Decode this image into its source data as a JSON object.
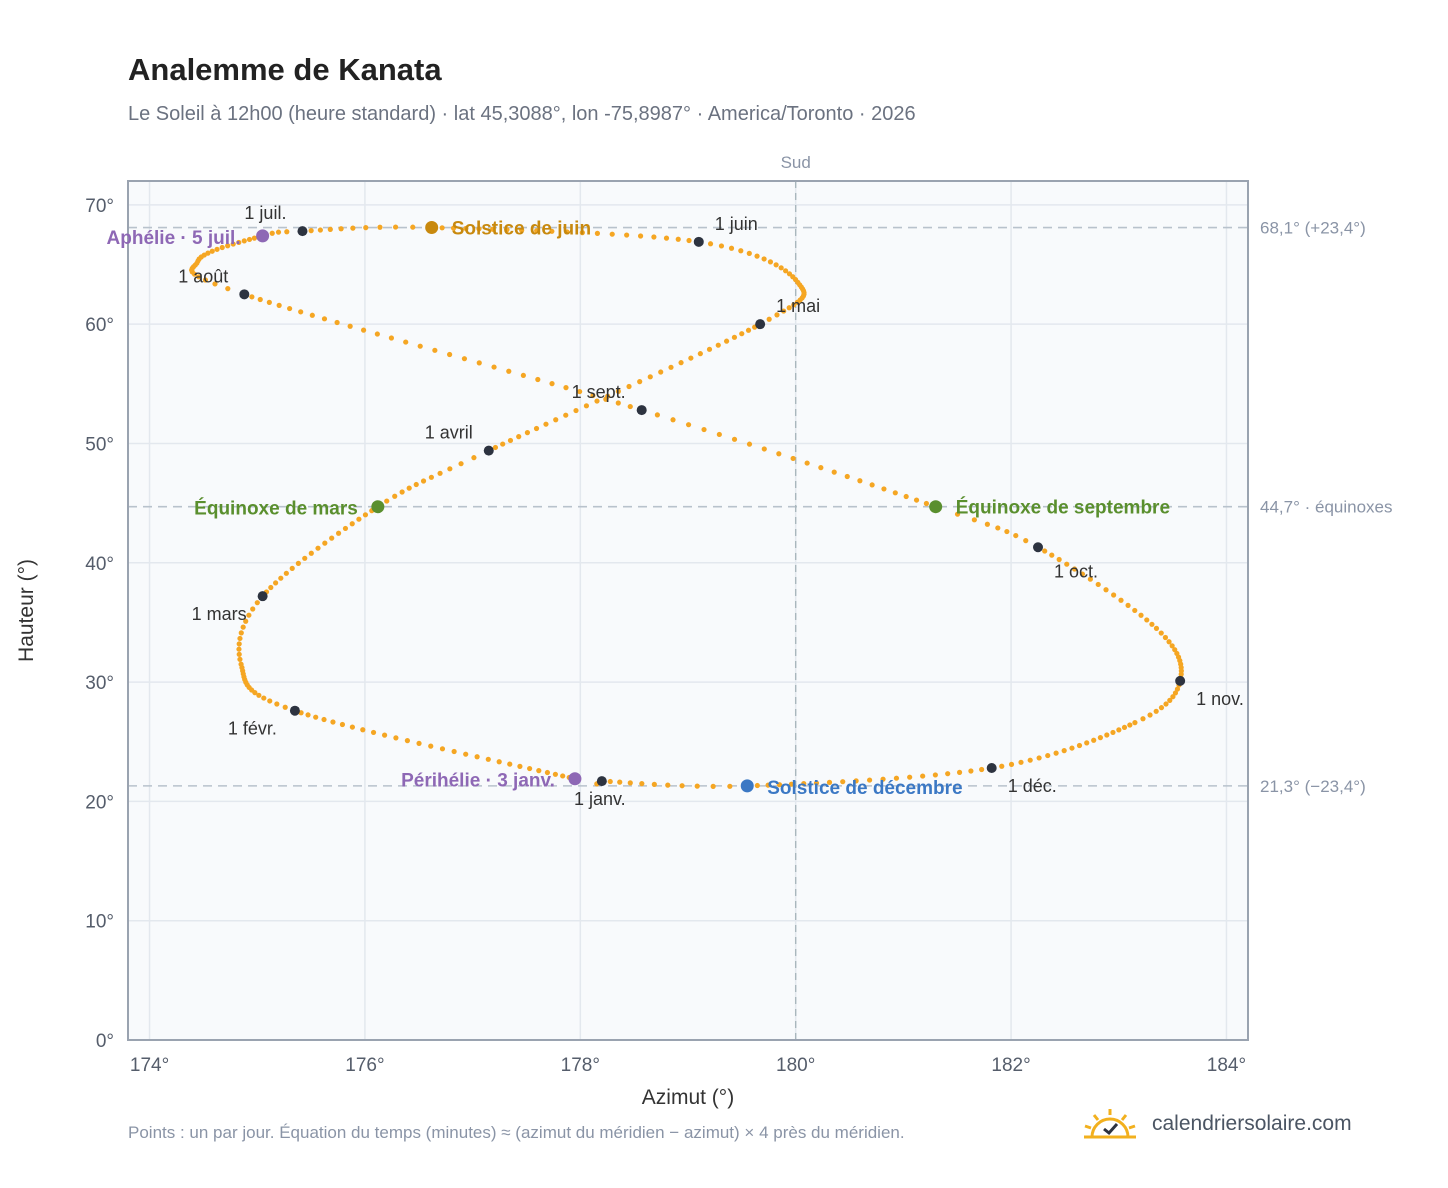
{
  "header": {
    "title": "Analemme de Kanata",
    "subtitle": "Le Soleil à 12h00 (heure standard) · lat 45,3088°, lon -75,8987° · America/Toronto · 2026"
  },
  "footer": {
    "note": "Points : un par jour. Équation du temps (minutes) ≈ (azimut du méridien − azimut) × 4 près du méridien.",
    "brand": "calendriersolaire.com"
  },
  "colors": {
    "curve": "#f5a623",
    "month_marker": "#2d3340",
    "solstice_june": "#c8890e",
    "solstice_december": "#3b78c4",
    "equinox": "#5a8f2e",
    "apsis": "#8e68b5",
    "plot_bg": "#f8fafc",
    "grid": "#e3e8ee",
    "ref_line": "#b8c2cc",
    "axis_text": "#555d6b"
  },
  "chart_data": {
    "type": "scatter",
    "xlabel": "Azimut (°)",
    "ylabel": "Hauteur (°)",
    "xlim": [
      173.8,
      184.2
    ],
    "ylim": [
      0,
      72
    ],
    "x_ticks": [
      174,
      176,
      178,
      180,
      182,
      184
    ],
    "x_tick_labels": [
      "174°",
      "176°",
      "178°",
      "180°",
      "182°",
      "184°"
    ],
    "y_ticks": [
      0,
      10,
      20,
      30,
      40,
      50,
      60,
      70
    ],
    "y_tick_labels": [
      "0°",
      "10°",
      "20°",
      "30°",
      "40°",
      "50°",
      "60°",
      "70°"
    ],
    "grid": true,
    "meridian": {
      "azimuth": 180,
      "label": "Sud"
    },
    "reference_lines": [
      {
        "altitude": 68.1,
        "label": "68,1° (+23,4°)"
      },
      {
        "altitude": 44.7,
        "label": "44,7° · équinoxes"
      },
      {
        "altitude": 21.3,
        "label": "21,3° (−23,4°)"
      }
    ],
    "series": [
      {
        "points_per": "day",
        "keypoints": [
          {
            "day": 0,
            "az": 178.2,
            "alt": 21.7
          },
          {
            "day": 2,
            "az": 177.95,
            "alt": 21.9
          },
          {
            "day": 31,
            "az": 175.35,
            "alt": 27.6
          },
          {
            "day": 47,
            "az": 174.85,
            "alt": 31.5
          },
          {
            "day": 59,
            "az": 175.05,
            "alt": 37.2
          },
          {
            "day": 78,
            "az": 176.12,
            "alt": 44.7
          },
          {
            "day": 90,
            "az": 177.15,
            "alt": 49.4
          },
          {
            "day": 120,
            "az": 179.67,
            "alt": 60.0
          },
          {
            "day": 136,
            "az": 180.02,
            "alt": 63.5
          },
          {
            "day": 151,
            "az": 179.1,
            "alt": 66.9
          },
          {
            "day": 171,
            "az": 176.62,
            "alt": 68.1
          },
          {
            "day": 181,
            "az": 175.42,
            "alt": 67.8
          },
          {
            "day": 185,
            "az": 175.05,
            "alt": 67.4
          },
          {
            "day": 200,
            "az": 174.45,
            "alt": 65.3
          },
          {
            "day": 212,
            "az": 174.88,
            "alt": 62.5
          },
          {
            "day": 243,
            "az": 178.57,
            "alt": 52.8
          },
          {
            "day": 265,
            "az": 181.3,
            "alt": 44.7
          },
          {
            "day": 273,
            "az": 182.25,
            "alt": 41.3
          },
          {
            "day": 290,
            "az": 183.35,
            "alt": 34.5
          },
          {
            "day": 304,
            "az": 183.57,
            "alt": 30.1
          },
          {
            "day": 315,
            "az": 183.15,
            "alt": 26.6
          },
          {
            "day": 334,
            "az": 181.82,
            "alt": 22.8
          },
          {
            "day": 354,
            "az": 179.55,
            "alt": 21.3
          },
          {
            "day": 365,
            "az": 178.2,
            "alt": 21.7
          }
        ]
      }
    ],
    "month_markers": [
      {
        "label": "1 janv.",
        "az": 178.2,
        "alt": 21.7
      },
      {
        "label": "1 févr.",
        "az": 175.35,
        "alt": 27.6
      },
      {
        "label": "1 mars",
        "az": 175.05,
        "alt": 37.2
      },
      {
        "label": "1 avril",
        "az": 177.15,
        "alt": 49.4
      },
      {
        "label": "1 mai",
        "az": 179.67,
        "alt": 60.0
      },
      {
        "label": "1 juin",
        "az": 179.1,
        "alt": 66.9
      },
      {
        "label": "1 juil.",
        "az": 175.42,
        "alt": 67.8
      },
      {
        "label": "1 août",
        "az": 174.88,
        "alt": 62.5
      },
      {
        "label": "1 sept.",
        "az": 178.57,
        "alt": 52.8
      },
      {
        "label": "1 oct.",
        "az": 182.25,
        "alt": 41.3
      },
      {
        "label": "1 nov.",
        "az": 183.57,
        "alt": 30.1
      },
      {
        "label": "1 déc.",
        "az": 181.82,
        "alt": 22.8
      }
    ],
    "events": [
      {
        "label": "Solstice de juin",
        "az": 176.62,
        "alt": 68.1,
        "color_key": "solstice_june"
      },
      {
        "label": "Aphélie · 5 juil.",
        "az": 175.05,
        "alt": 67.4,
        "color_key": "apsis"
      },
      {
        "label": "Équinoxe de mars",
        "az": 176.12,
        "alt": 44.7,
        "color_key": "equinox"
      },
      {
        "label": "Équinoxe de septembre",
        "az": 181.3,
        "alt": 44.7,
        "color_key": "equinox"
      },
      {
        "label": "Périhélie · 3 janv.",
        "az": 177.95,
        "alt": 21.9,
        "color_key": "apsis"
      },
      {
        "label": "Solstice de décembre",
        "az": 179.55,
        "alt": 21.3,
        "color_key": "solstice_december"
      }
    ]
  }
}
